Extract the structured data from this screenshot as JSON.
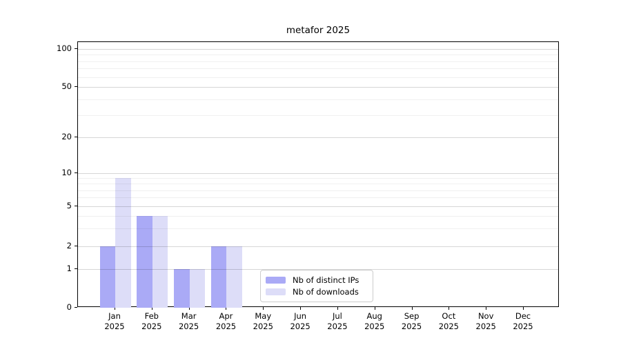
{
  "title": "metafor 2025",
  "chart_data": {
    "type": "bar",
    "title": "metafor 2025",
    "categories": [
      "Jan",
      "Feb",
      "Mar",
      "Apr",
      "May",
      "Jun",
      "Jul",
      "Aug",
      "Sep",
      "Oct",
      "Nov",
      "Dec"
    ],
    "year_label": "2025",
    "series": [
      {
        "name": "Nb of distinct IPs",
        "color": "#aaaaf6",
        "values": [
          2,
          4,
          1,
          2,
          0,
          0,
          0,
          0,
          0,
          0,
          0,
          0
        ]
      },
      {
        "name": "Nb of downloads",
        "color": "#ddddf8",
        "values": [
          9,
          4,
          1,
          2,
          0,
          0,
          0,
          0,
          0,
          0,
          0,
          0
        ]
      }
    ],
    "y_ticks": [
      0,
      1,
      2,
      5,
      10,
      20,
      50,
      100
    ],
    "y_minor_ticks": [
      3,
      4,
      6,
      7,
      8,
      9,
      30,
      40,
      60,
      70,
      80,
      90
    ],
    "y_scale": "log-like",
    "xlabel": "",
    "ylabel": "",
    "grid": "both, drawn above bars",
    "legend_position": "lower center-left inside plot"
  }
}
